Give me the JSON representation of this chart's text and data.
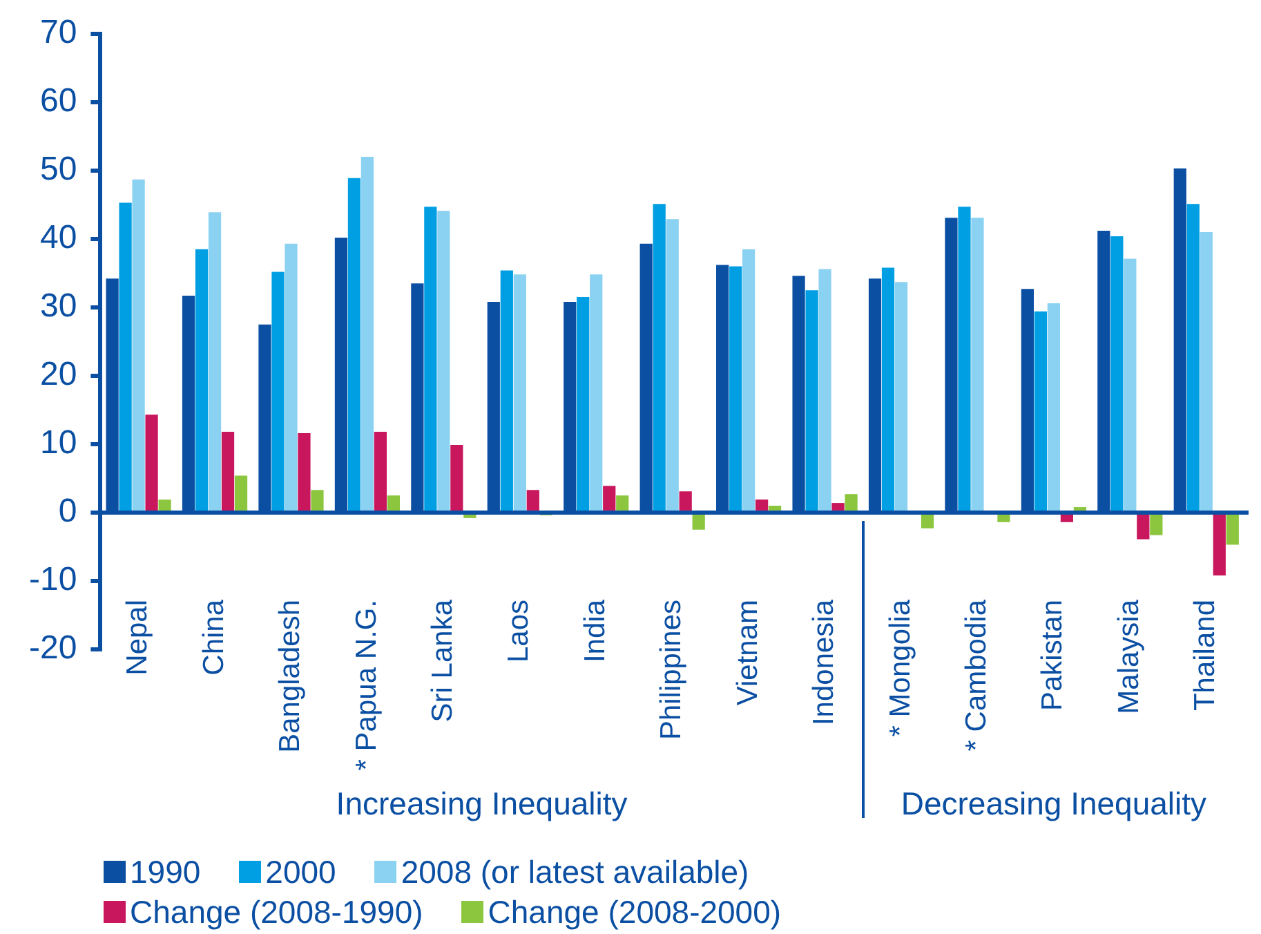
{
  "chart_data": {
    "type": "bar",
    "categories": [
      "Nepal",
      "China",
      "Bangladesh",
      "* Papua N.G.",
      "Sri Lanka",
      "Laos",
      "India",
      "Philippines",
      "Vietnam",
      "Indonesia",
      "* Mongolia",
      "* Cambodia",
      "Pakistan",
      "Malaysia",
      "Thailand"
    ],
    "series": [
      {
        "name": "1990",
        "color": "#0b4fa3",
        "values": [
          34.2,
          31.7,
          27.5,
          40.2,
          33.5,
          30.8,
          30.8,
          39.3,
          36.2,
          34.6,
          34.2,
          43.1,
          32.7,
          41.2,
          50.3
        ]
      },
      {
        "name": "2000",
        "color": "#009fe3",
        "values": [
          45.3,
          38.5,
          35.2,
          48.9,
          44.7,
          35.4,
          31.5,
          45.1,
          36.0,
          32.5,
          35.8,
          44.7,
          29.4,
          40.4,
          45.1
        ]
      },
      {
        "name": "2008 (or latest available)",
        "color": "#8bd1f2",
        "values": [
          48.7,
          43.9,
          39.3,
          52.0,
          44.1,
          34.8,
          34.8,
          42.9,
          38.5,
          35.6,
          33.7,
          43.1,
          30.6,
          37.1,
          41.0
        ]
      },
      {
        "name": "Change (2008-1990)",
        "color": "#c8175d",
        "values": [
          14.3,
          11.8,
          11.6,
          11.8,
          9.9,
          3.3,
          3.9,
          3.1,
          1.9,
          1.4,
          null,
          null,
          -1.4,
          -3.9,
          -9.2
        ]
      },
      {
        "name": "Change (2008-2000)",
        "color": "#8cc63f",
        "values": [
          1.9,
          5.4,
          3.3,
          2.5,
          -0.8,
          -0.4,
          2.5,
          -2.5,
          1.0,
          2.7,
          -2.3,
          -1.4,
          0.8,
          -3.3,
          -4.7
        ]
      }
    ],
    "ylim": [
      -20,
      70
    ],
    "yticks": [
      -20,
      -10,
      0,
      10,
      20,
      30,
      40,
      50,
      60,
      70
    ],
    "grid": false,
    "legend": "bottom",
    "ref_lines": [
      {
        "axis": "y",
        "value": 0,
        "color": "#0b4fa3"
      }
    ],
    "annotations": [
      "Increasing Inequality",
      "Decreasing Inequality"
    ]
  }
}
